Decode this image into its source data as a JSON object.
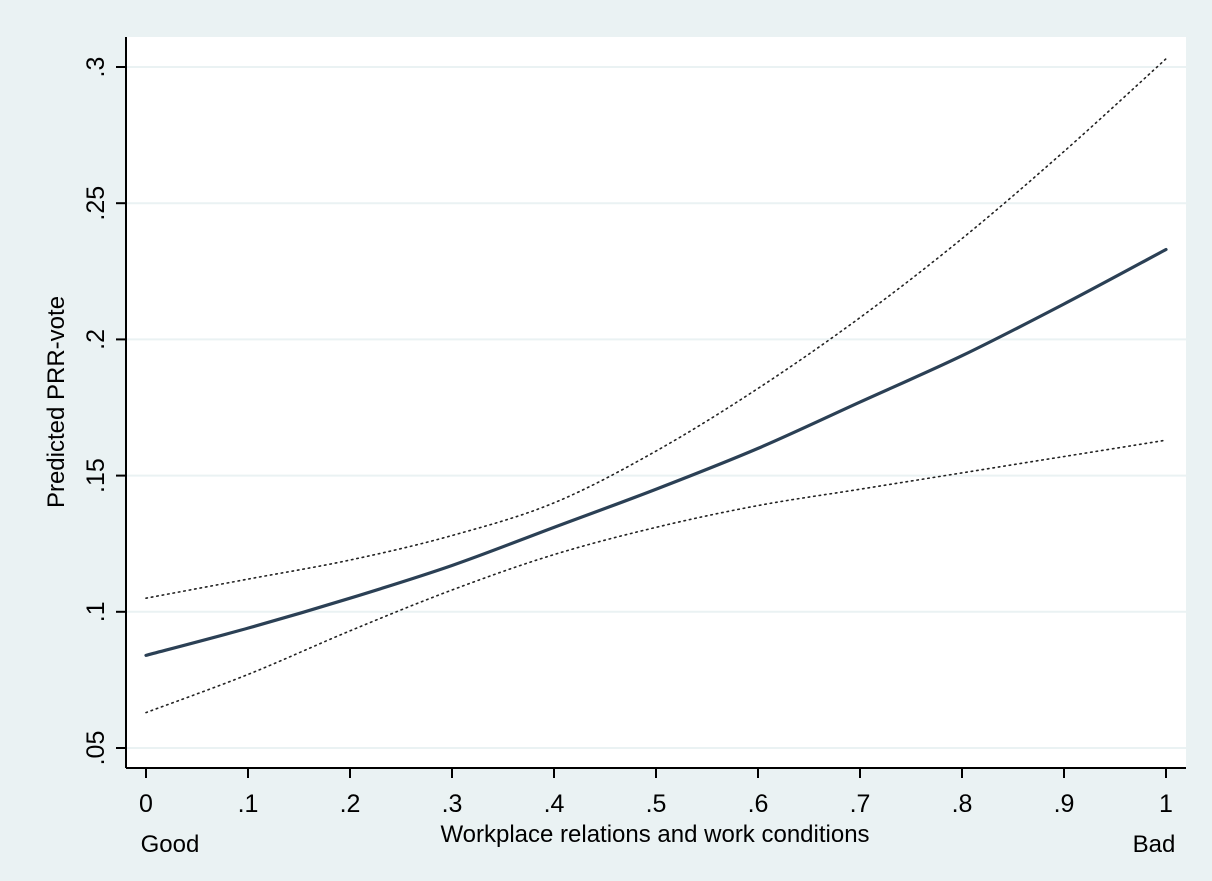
{
  "chart_data": {
    "type": "line",
    "xlabel": "Workplace relations and work conditions",
    "ylabel": "Predicted PRR-vote",
    "x_end_labels": {
      "left": "Good",
      "right": "Bad"
    },
    "xlim": [
      0,
      1
    ],
    "ylim": [
      0.05,
      0.3
    ],
    "x_ticks": [
      0,
      0.1,
      0.2,
      0.3,
      0.4,
      0.5,
      0.6,
      0.7,
      0.8,
      0.9,
      1
    ],
    "x_tick_labels": [
      "0",
      ".1",
      ".2",
      ".3",
      ".4",
      ".5",
      ".6",
      ".7",
      ".8",
      ".9",
      "1"
    ],
    "y_ticks": [
      0.05,
      0.1,
      0.15,
      0.2,
      0.25,
      0.3
    ],
    "y_tick_labels": [
      ".05",
      ".1",
      ".15",
      ".2",
      ".25",
      ".3"
    ],
    "grid": true,
    "x": [
      0,
      0.1,
      0.2,
      0.3,
      0.4,
      0.5,
      0.6,
      0.7,
      0.8,
      0.9,
      1
    ],
    "series": [
      {
        "role": "estimate",
        "style": "solid",
        "color": "#2b4055",
        "values": [
          0.084,
          0.094,
          0.105,
          0.117,
          0.131,
          0.145,
          0.16,
          0.177,
          0.194,
          0.213,
          0.233
        ]
      },
      {
        "role": "upper-ci",
        "style": "dotted",
        "color": "#222222",
        "values": [
          0.105,
          0.112,
          0.119,
          0.128,
          0.14,
          0.159,
          0.182,
          0.208,
          0.237,
          0.269,
          0.303
        ]
      },
      {
        "role": "lower-ci",
        "style": "dotted",
        "color": "#222222",
        "values": [
          0.063,
          0.077,
          0.093,
          0.108,
          0.121,
          0.131,
          0.139,
          0.145,
          0.151,
          0.157,
          0.163
        ]
      }
    ]
  }
}
